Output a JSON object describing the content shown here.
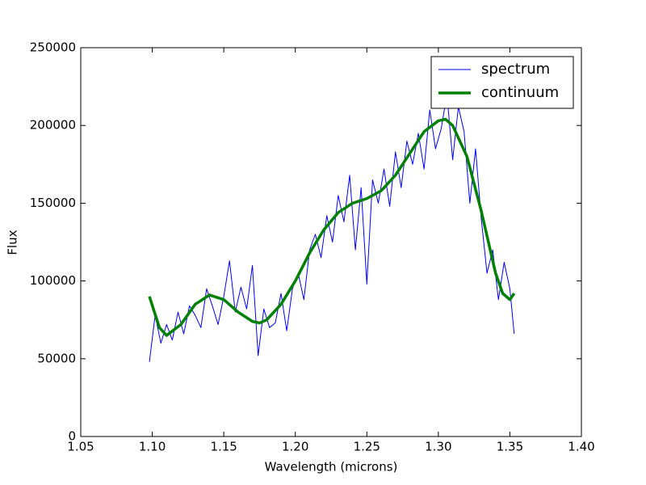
{
  "chart_data": {
    "type": "line",
    "xlabel": "Wavelength (microns)",
    "ylabel": "Flux",
    "xlim": [
      1.05,
      1.4
    ],
    "xticks": [
      {
        "value": 1.05,
        "label": "1.05"
      },
      {
        "value": 1.1,
        "label": "1.10"
      },
      {
        "value": 1.15,
        "label": "1.15"
      },
      {
        "value": 1.2,
        "label": "1.20"
      },
      {
        "value": 1.25,
        "label": "1.25"
      },
      {
        "value": 1.3,
        "label": "1.30"
      },
      {
        "value": 1.35,
        "label": "1.35"
      },
      {
        "value": 1.4,
        "label": "1.40"
      }
    ],
    "ylim": [
      0,
      250000
    ],
    "yticks": [
      0,
      50000,
      100000,
      150000,
      200000,
      250000
    ],
    "legend": "upper right",
    "series": [
      {
        "name": "spectrum",
        "color": "#0000ff",
        "width": 1,
        "x": [
          1.098,
          1.102,
          1.106,
          1.11,
          1.114,
          1.118,
          1.122,
          1.126,
          1.13,
          1.134,
          1.138,
          1.142,
          1.146,
          1.15,
          1.154,
          1.158,
          1.162,
          1.166,
          1.17,
          1.174,
          1.178,
          1.182,
          1.186,
          1.19,
          1.194,
          1.198,
          1.202,
          1.206,
          1.21,
          1.214,
          1.218,
          1.222,
          1.226,
          1.23,
          1.234,
          1.238,
          1.242,
          1.246,
          1.25,
          1.254,
          1.258,
          1.262,
          1.266,
          1.27,
          1.274,
          1.278,
          1.282,
          1.286,
          1.29,
          1.294,
          1.298,
          1.302,
          1.306,
          1.31,
          1.314,
          1.318,
          1.322,
          1.326,
          1.33,
          1.334,
          1.338,
          1.342,
          1.346,
          1.35,
          1.353
        ],
        "values": [
          48000,
          78000,
          60000,
          72000,
          62000,
          80000,
          66000,
          84000,
          78000,
          70000,
          95000,
          84000,
          72000,
          90000,
          113000,
          80000,
          96000,
          82000,
          110000,
          52000,
          82000,
          70000,
          73000,
          92000,
          68000,
          95000,
          105000,
          88000,
          120000,
          130000,
          115000,
          142000,
          125000,
          155000,
          138000,
          168000,
          120000,
          160000,
          98000,
          165000,
          150000,
          172000,
          148000,
          183000,
          160000,
          190000,
          175000,
          195000,
          172000,
          210000,
          185000,
          198000,
          220000,
          178000,
          212000,
          196000,
          150000,
          185000,
          140000,
          105000,
          120000,
          88000,
          112000,
          95000,
          66000
        ]
      },
      {
        "name": "continuum",
        "color": "#008000",
        "width": 3.5,
        "x": [
          1.098,
          1.105,
          1.11,
          1.12,
          1.13,
          1.14,
          1.15,
          1.16,
          1.17,
          1.175,
          1.18,
          1.19,
          1.2,
          1.21,
          1.22,
          1.23,
          1.24,
          1.25,
          1.26,
          1.27,
          1.28,
          1.29,
          1.3,
          1.305,
          1.31,
          1.32,
          1.33,
          1.34,
          1.345,
          1.35,
          1.353
        ],
        "values": [
          90000,
          70000,
          65000,
          72000,
          85000,
          91000,
          88000,
          80000,
          74000,
          73000,
          75000,
          85000,
          100000,
          118000,
          133000,
          144000,
          150000,
          153000,
          158000,
          168000,
          182000,
          196000,
          203000,
          204000,
          200000,
          180000,
          145000,
          105000,
          92000,
          88000,
          92000
        ]
      }
    ]
  }
}
